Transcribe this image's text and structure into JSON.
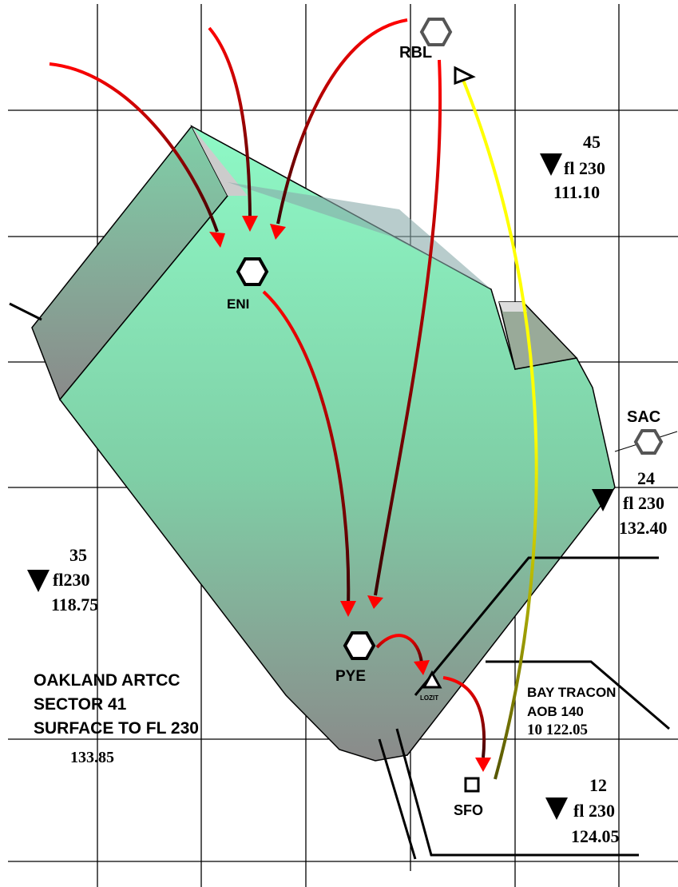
{
  "waypoints": {
    "rbl": "RBL",
    "eni": "ENI",
    "pye": "PYE",
    "sac": "SAC",
    "lozit": "LOZIT",
    "sfo": "SFO"
  },
  "sectors": {
    "s45": {
      "number": "45",
      "altitude": "fl 230",
      "frequency": "111.10"
    },
    "s24": {
      "number": "24",
      "altitude": "fl 230",
      "frequency": "132.40"
    },
    "s35": {
      "number": "35",
      "altitude": "fl230",
      "frequency": "118.75"
    },
    "s12": {
      "number": "12",
      "altitude": "fl 230",
      "frequency": "124.05"
    }
  },
  "main_sector": {
    "line1": "OAKLAND ARTCC",
    "line2": "SECTOR 41",
    "line3": "SURFACE TO FL 230",
    "frequency": "133.85"
  },
  "tracon": {
    "line1": "BAY TRACON",
    "line2": "AOB 140",
    "line3": "10 122.05"
  }
}
